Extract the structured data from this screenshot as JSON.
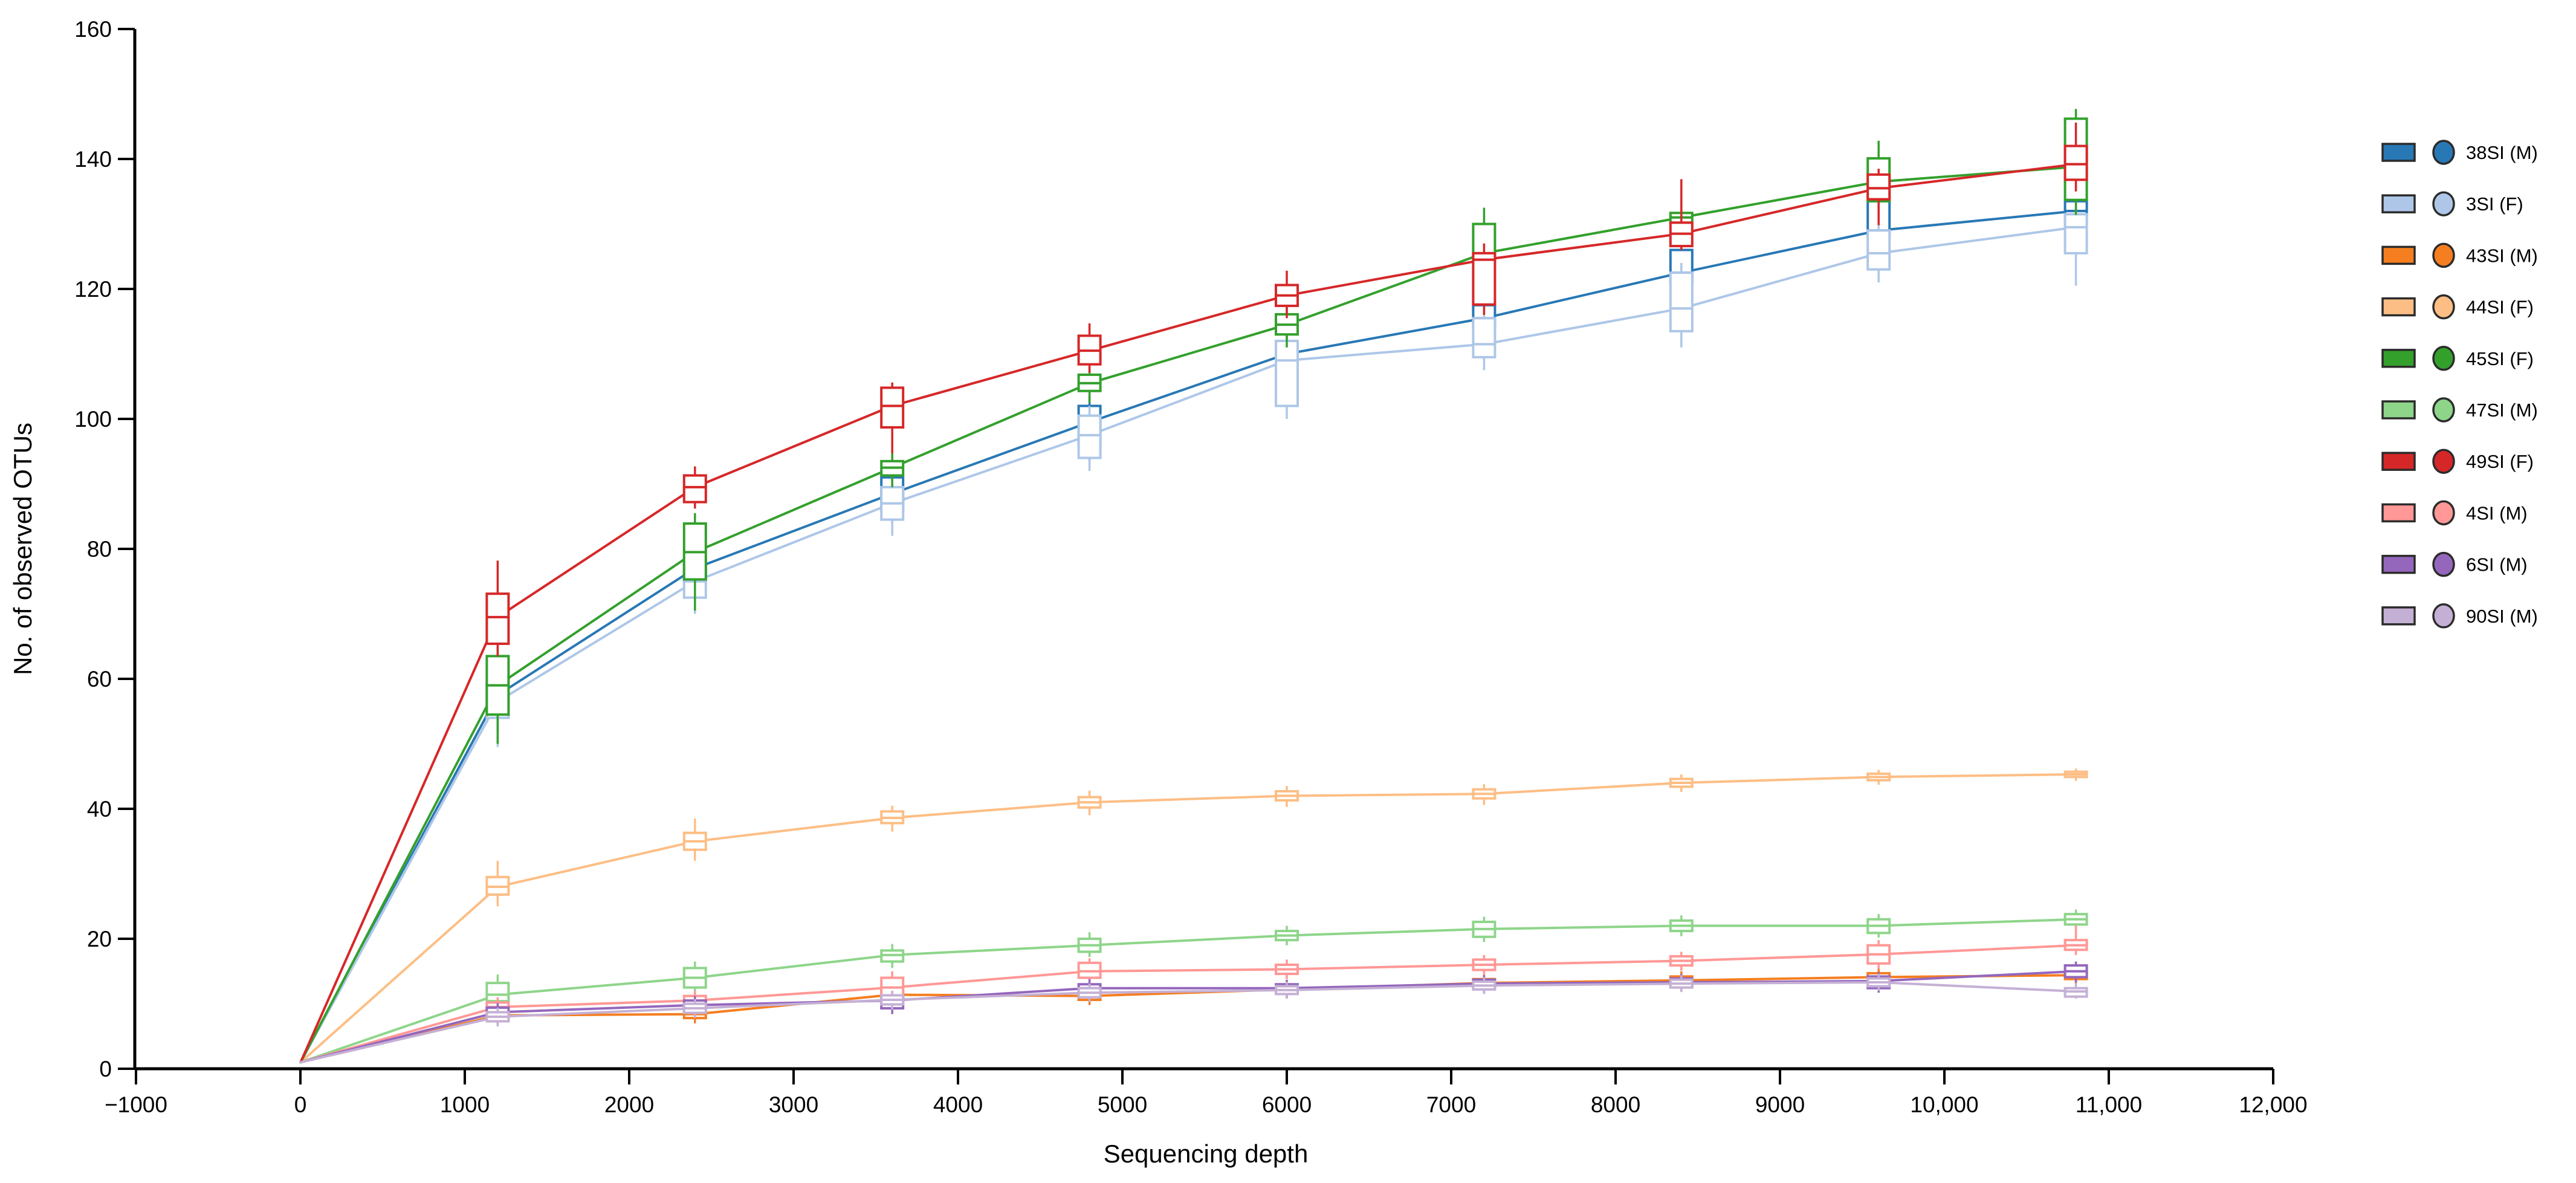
{
  "chart_data": {
    "type": "line",
    "title": "",
    "xlabel": "Sequencing depth",
    "ylabel": "No. of observed OTUs",
    "xlim": [
      -1000,
      12000
    ],
    "ylim": [
      0,
      160
    ],
    "grid": false,
    "legend_position": "right",
    "x_ticks": [
      {
        "value": -1000,
        "label": "−1000"
      },
      {
        "value": 0,
        "label": "0"
      },
      {
        "value": 1000,
        "label": "1000"
      },
      {
        "value": 2000,
        "label": "2000"
      },
      {
        "value": 3000,
        "label": "3000"
      },
      {
        "value": 4000,
        "label": "4000"
      },
      {
        "value": 5000,
        "label": "5000"
      },
      {
        "value": 6000,
        "label": "6000"
      },
      {
        "value": 7000,
        "label": "7000"
      },
      {
        "value": 8000,
        "label": "8000"
      },
      {
        "value": 9000,
        "label": "9000"
      },
      {
        "value": 10000,
        "label": "10,000"
      },
      {
        "value": 11000,
        "label": "11,000"
      },
      {
        "value": 12000,
        "label": "12,000"
      }
    ],
    "y_ticks": [
      {
        "value": 0,
        "label": "0"
      },
      {
        "value": 20,
        "label": "20"
      },
      {
        "value": 40,
        "label": "40"
      },
      {
        "value": 60,
        "label": "60"
      },
      {
        "value": 80,
        "label": "80"
      },
      {
        "value": 100,
        "label": "100"
      },
      {
        "value": 120,
        "label": "120"
      },
      {
        "value": 140,
        "label": "140"
      },
      {
        "value": 160,
        "label": "160"
      }
    ],
    "point_format": "[depth, median, q1, q3, whisker_low, whisker_high]",
    "series": [
      {
        "id": "38SI",
        "label": "38SI (M)",
        "color": "#2878b5",
        "points": [
          [
            1,
            1,
            null,
            null,
            null,
            null
          ],
          [
            1200,
            57.5,
            55.5,
            59.5,
            52,
            61
          ],
          [
            2400,
            77,
            75,
            78.5,
            73,
            80
          ],
          [
            3600,
            88.5,
            86,
            91,
            84,
            92.5
          ],
          [
            4800,
            99.5,
            96,
            102,
            93.5,
            103.5
          ],
          [
            6000,
            110,
            108.5,
            112,
            106,
            113
          ],
          [
            7200,
            115.5,
            114,
            117.5,
            112,
            119
          ],
          [
            8400,
            122.5,
            121,
            126,
            119,
            127
          ],
          [
            9600,
            129,
            128,
            133.5,
            126,
            134.5
          ],
          [
            10800,
            132,
            130.5,
            133.5,
            128,
            135
          ]
        ]
      },
      {
        "id": "3SI",
        "label": "3SI (F)",
        "color": "#aec7e8",
        "points": [
          [
            1,
            1,
            null,
            null,
            null,
            null
          ],
          [
            1200,
            56.5,
            54,
            58.5,
            49.5,
            60
          ],
          [
            2400,
            75,
            72.5,
            75.5,
            70,
            77
          ],
          [
            3600,
            87,
            84.5,
            89.5,
            82,
            91
          ],
          [
            4800,
            97.5,
            94,
            100.5,
            92,
            102
          ],
          [
            6000,
            109,
            102,
            112,
            100,
            113.5
          ],
          [
            7200,
            111.5,
            109.5,
            115.5,
            107.5,
            117
          ],
          [
            8400,
            117,
            113.5,
            122.5,
            111,
            124
          ],
          [
            9600,
            125.5,
            123,
            129,
            121,
            130.5
          ],
          [
            10800,
            129.5,
            125.5,
            131.5,
            120.5,
            133
          ]
        ]
      },
      {
        "id": "43SI",
        "label": "43SI (M)",
        "color": "#f57e20",
        "points": [
          [
            1,
            1,
            null,
            null,
            null,
            null
          ],
          [
            1200,
            8.2,
            7.6,
            8.8,
            6.8,
            9.5
          ],
          [
            2400,
            8.4,
            7.8,
            9,
            7,
            9.8
          ],
          [
            3600,
            11.4,
            10.8,
            12,
            10,
            12.8
          ],
          [
            4800,
            11.2,
            10.6,
            11.8,
            9.8,
            12.5
          ],
          [
            6000,
            12.2,
            11.6,
            12.8,
            10.8,
            13.5
          ],
          [
            7200,
            13.2,
            12.6,
            13.8,
            11.8,
            14.5
          ],
          [
            8400,
            13.6,
            13,
            14.2,
            12.2,
            15
          ],
          [
            9600,
            14.1,
            13.5,
            14.7,
            12.7,
            15.4
          ],
          [
            10800,
            14.4,
            13.8,
            15,
            13,
            15.7
          ]
        ]
      },
      {
        "id": "44SI",
        "label": "44SI (F)",
        "color": "#fdbe85",
        "points": [
          [
            1,
            1,
            null,
            null,
            null,
            null
          ],
          [
            1200,
            28,
            26.8,
            29.5,
            25,
            32
          ],
          [
            2400,
            35,
            33.7,
            36.3,
            32,
            38.5
          ],
          [
            3600,
            38.6,
            37.8,
            39.6,
            36.5,
            40.5
          ],
          [
            4800,
            41,
            40.2,
            41.8,
            39,
            42.8
          ],
          [
            6000,
            42,
            41.3,
            42.7,
            40.3,
            43.5
          ],
          [
            7200,
            42.3,
            41.6,
            43,
            40.6,
            43.8
          ],
          [
            8400,
            44,
            43.4,
            44.6,
            42.6,
            45.3
          ],
          [
            9600,
            44.9,
            44.4,
            45.4,
            43.7,
            46
          ],
          [
            10800,
            45.3,
            44.9,
            45.7,
            44.3,
            46.2
          ]
        ]
      },
      {
        "id": "45SI",
        "label": "45SI (F)",
        "color": "#33a02c",
        "points": [
          [
            1,
            1,
            null,
            null,
            null,
            null
          ],
          [
            1200,
            59,
            54.5,
            63.5,
            50,
            65
          ],
          [
            2400,
            79.5,
            75.3,
            83.9,
            70.5,
            85.5
          ],
          [
            3600,
            92.5,
            91.3,
            93.5,
            89.5,
            95
          ],
          [
            4800,
            105.5,
            104.3,
            106.8,
            102.5,
            108
          ],
          [
            6000,
            114.5,
            113,
            116.1,
            111,
            117.5
          ],
          [
            7200,
            125.5,
            124.5,
            130,
            122.5,
            132.5
          ],
          [
            8400,
            131,
            130.2,
            131.7,
            128.5,
            133
          ],
          [
            9600,
            136.5,
            133.5,
            140.1,
            131,
            142.8
          ],
          [
            10800,
            138.8,
            133.7,
            146.2,
            131.4,
            147.7
          ]
        ]
      },
      {
        "id": "47SI",
        "label": "47SI (M)",
        "color": "#8ed58a",
        "points": [
          [
            1,
            1,
            null,
            null,
            null,
            null
          ],
          [
            1200,
            11.4,
            10.4,
            13.2,
            9.5,
            14.5
          ],
          [
            2400,
            14,
            12.5,
            15.5,
            11.5,
            16.5
          ],
          [
            3600,
            17.5,
            16.5,
            18.2,
            15.5,
            19.2
          ],
          [
            4800,
            19,
            18,
            20,
            17.2,
            21
          ],
          [
            6000,
            20.5,
            19.8,
            21.2,
            19,
            22
          ],
          [
            7200,
            21.5,
            20.3,
            22.6,
            19.5,
            23.4
          ],
          [
            8400,
            22,
            21.2,
            22.8,
            20.4,
            23.6
          ],
          [
            9600,
            22,
            20.9,
            23,
            20.2,
            23.8
          ],
          [
            10800,
            23,
            22.2,
            23.8,
            21.5,
            24.5
          ]
        ]
      },
      {
        "id": "49SI",
        "label": "49SI (F)",
        "color": "#d62728",
        "points": [
          [
            1,
            1,
            null,
            null,
            null,
            null
          ],
          [
            1200,
            69.5,
            65.4,
            73.1,
            63.5,
            78.2
          ],
          [
            2400,
            89.5,
            87.2,
            91.3,
            86.2,
            92.7
          ],
          [
            3600,
            102,
            98.7,
            104.8,
            94.7,
            105.6
          ],
          [
            4800,
            110.5,
            108.4,
            112.8,
            107.1,
            114.7
          ],
          [
            6000,
            119,
            117.4,
            120.6,
            115.5,
            122.8
          ],
          [
            7200,
            124.5,
            117.6,
            125.5,
            116,
            127
          ],
          [
            8400,
            128.5,
            126.6,
            130.2,
            126,
            136.9
          ],
          [
            9600,
            135.5,
            133.8,
            137.6,
            129.8,
            138.5
          ],
          [
            10800,
            139.2,
            136.8,
            142,
            135,
            145.6
          ]
        ]
      },
      {
        "id": "4SI",
        "label": "4SI (M)",
        "color": "#ff9896",
        "points": [
          [
            1,
            1,
            null,
            null,
            null,
            null
          ],
          [
            1200,
            9.5,
            8.8,
            10.2,
            8,
            11
          ],
          [
            2400,
            10.5,
            9.8,
            11.2,
            9,
            12
          ],
          [
            3600,
            12.5,
            11.2,
            14,
            10.5,
            15
          ],
          [
            4800,
            15,
            14,
            16.3,
            13.2,
            17
          ],
          [
            6000,
            15.3,
            14.6,
            16,
            13.8,
            16.8
          ],
          [
            7200,
            16,
            15.2,
            16.8,
            14.4,
            17.5
          ],
          [
            8400,
            16.6,
            15.9,
            17.3,
            15.1,
            18
          ],
          [
            9600,
            17.6,
            16.2,
            19,
            15.4,
            19.8
          ],
          [
            10800,
            19,
            18.3,
            19.8,
            17.5,
            22
          ]
        ]
      },
      {
        "id": "6SI",
        "label": "6SI (M)",
        "color": "#9467bd",
        "points": [
          [
            1,
            1,
            null,
            null,
            null,
            null
          ],
          [
            1200,
            8.7,
            8,
            9.4,
            7.2,
            10.1
          ],
          [
            2400,
            9.8,
            9.1,
            10.5,
            8.3,
            11.2
          ],
          [
            3600,
            10.5,
            9.3,
            11.3,
            8.4,
            12
          ],
          [
            4800,
            12.4,
            11.3,
            13,
            10.5,
            13.8
          ],
          [
            6000,
            12.4,
            11.8,
            13,
            11,
            13.7
          ],
          [
            7200,
            13.1,
            12.5,
            13.7,
            11.7,
            14.4
          ],
          [
            8400,
            13.3,
            12.7,
            13.9,
            12,
            14.6
          ],
          [
            9600,
            13.5,
            12.4,
            14.2,
            11.7,
            14.9
          ],
          [
            10800,
            15,
            14.1,
            15.9,
            13.3,
            16.5
          ]
        ]
      },
      {
        "id": "90SI",
        "label": "90SI (M)",
        "color": "#c5b0d5",
        "points": [
          [
            1,
            1,
            null,
            null,
            null,
            null
          ],
          [
            1200,
            8,
            7.3,
            8.7,
            6.5,
            9.4
          ],
          [
            2400,
            9.3,
            8.6,
            10,
            7.8,
            10.7
          ],
          [
            3600,
            10.6,
            9.9,
            11.3,
            9.1,
            12
          ],
          [
            4800,
            11.7,
            11,
            12.4,
            10.3,
            13.1
          ],
          [
            6000,
            12.1,
            11.5,
            12.7,
            10.8,
            13.4
          ],
          [
            7200,
            12.8,
            12.2,
            13.4,
            11.5,
            14.1
          ],
          [
            8400,
            13.1,
            12.5,
            13.7,
            11.8,
            14.4
          ],
          [
            9600,
            13.3,
            12.7,
            13.9,
            12,
            14.6
          ],
          [
            10800,
            11.9,
            11.1,
            12.4,
            10.8,
            13.2
          ]
        ]
      }
    ],
    "legend_swatch_edge_color": "#2b2b2b",
    "axis_color": "#000000"
  }
}
